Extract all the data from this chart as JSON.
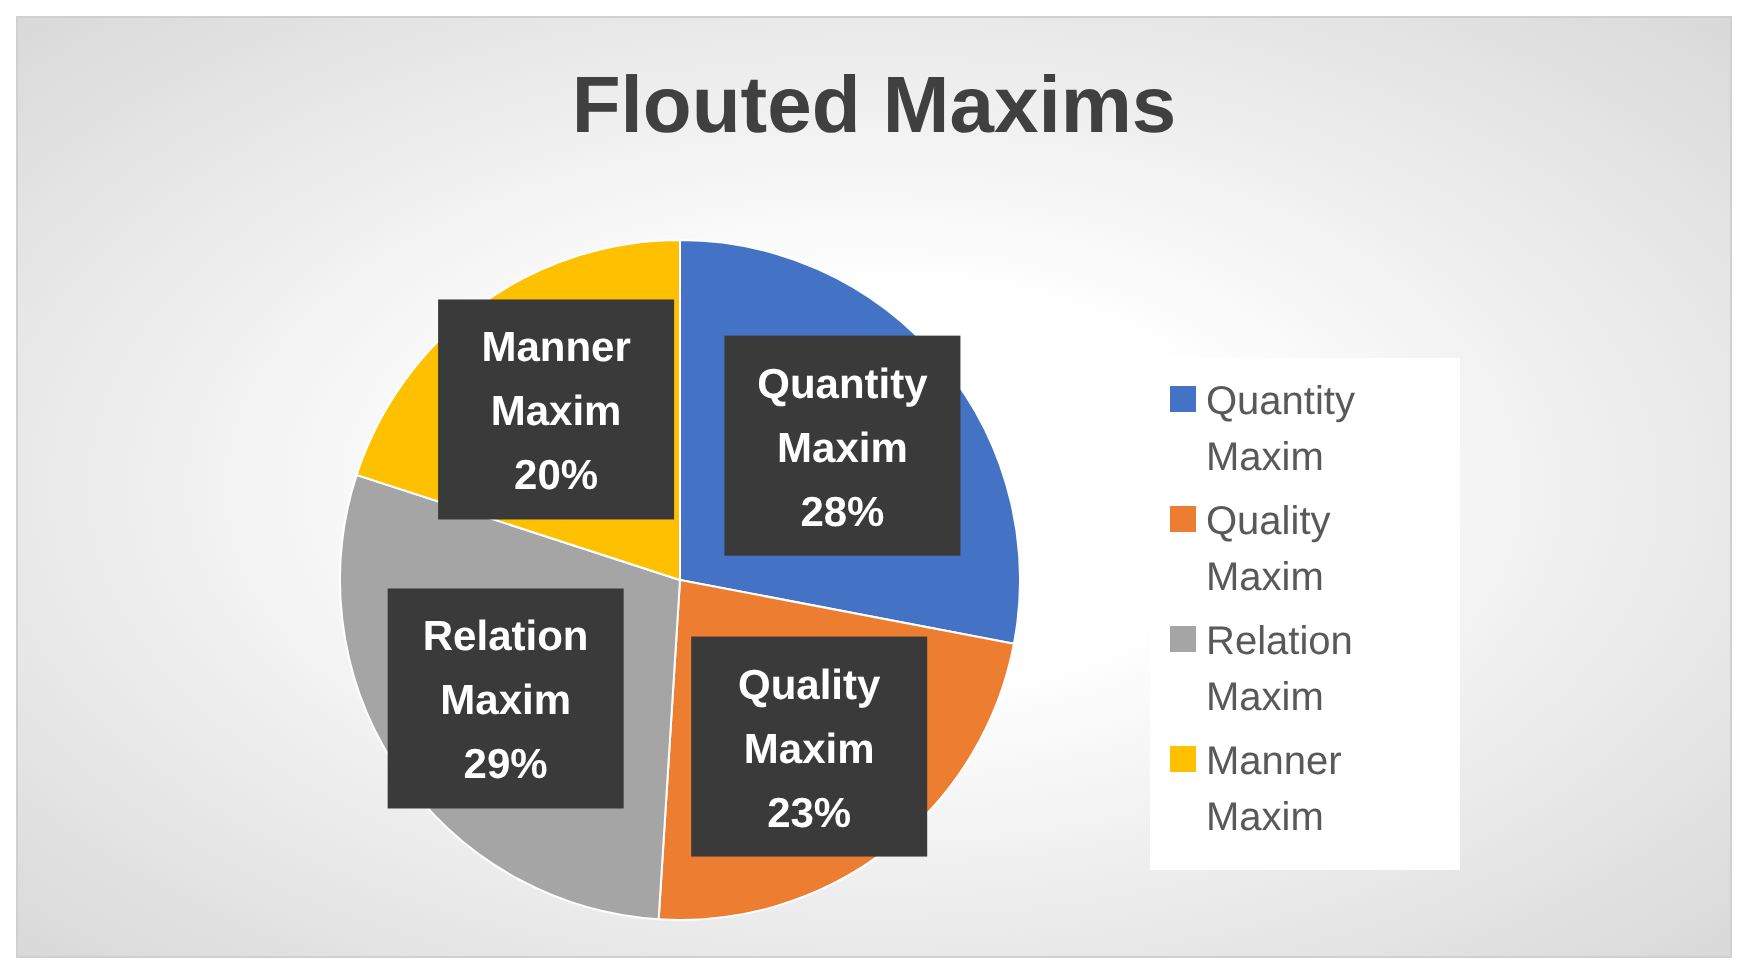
{
  "chart_data": {
    "type": "pie",
    "title": "Flouted Maxims",
    "categories": [
      "Quantity Maxim",
      "Quality Maxim",
      "Relation Maxim",
      "Manner Maxim"
    ],
    "values": [
      28,
      23,
      29,
      20
    ],
    "colors": [
      "#4472c4",
      "#ed7d31",
      "#a5a5a5",
      "#ffc000"
    ],
    "value_labels": [
      "28%",
      "23%",
      "29%",
      "20%"
    ],
    "legend": "right"
  }
}
